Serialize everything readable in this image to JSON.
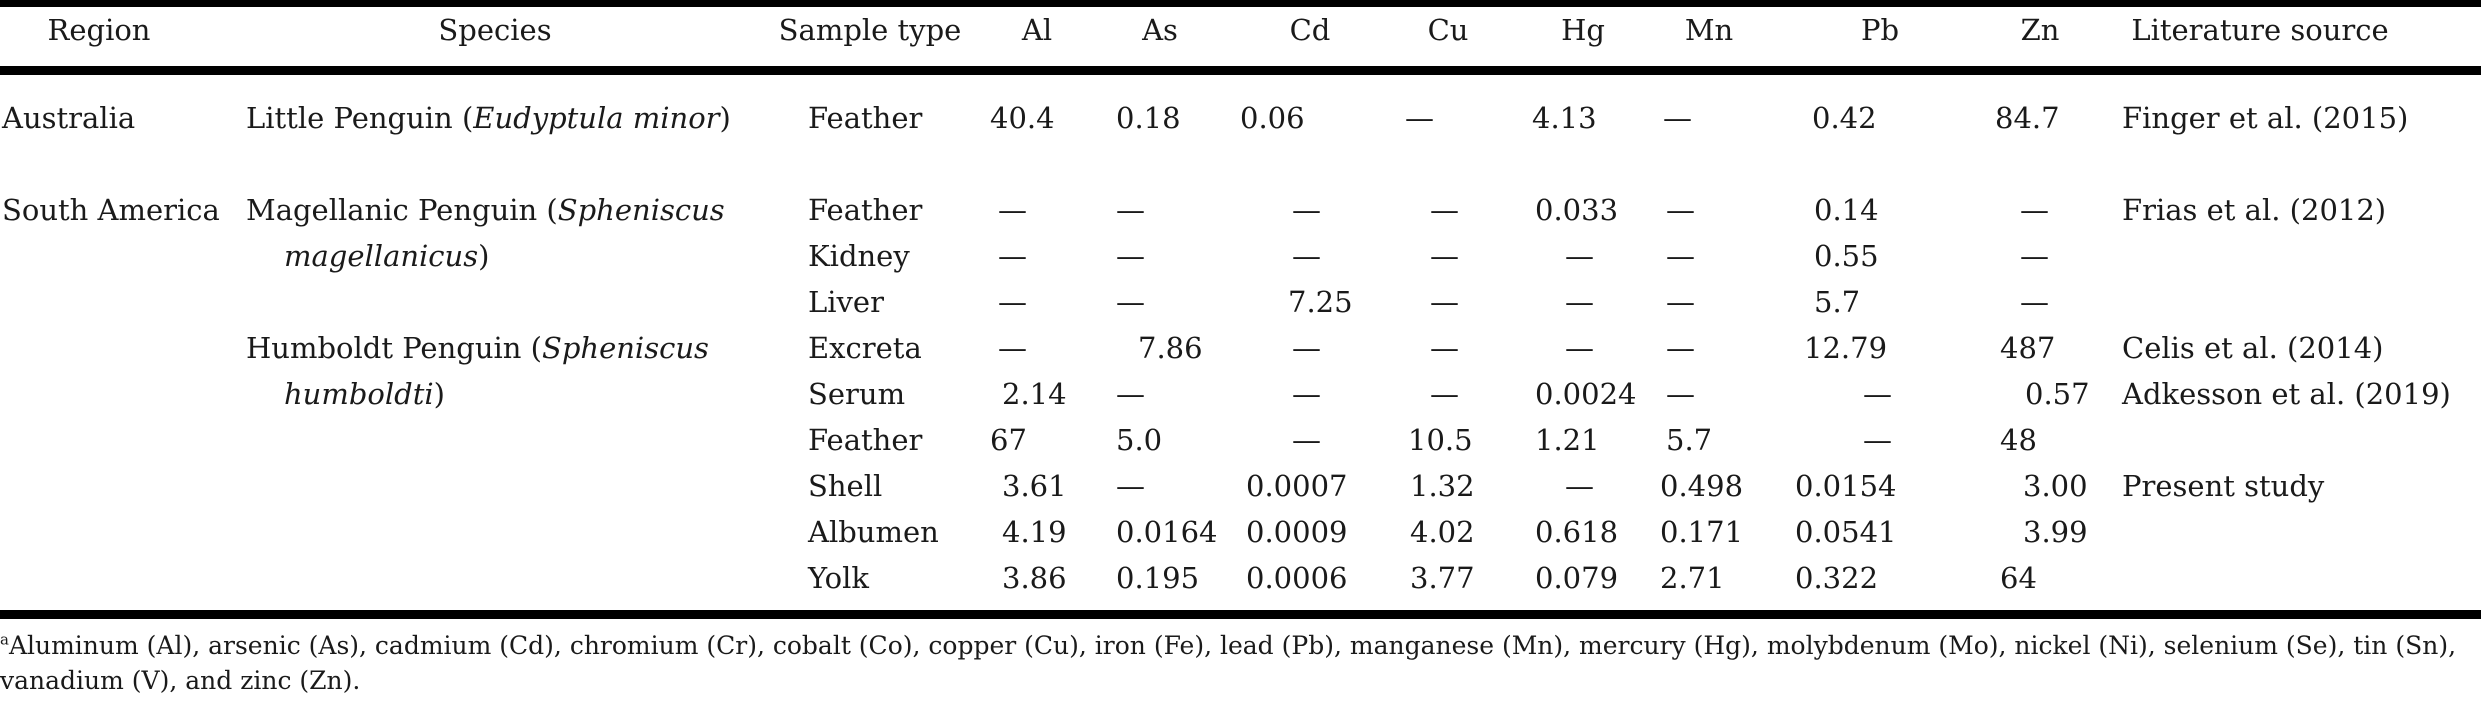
{
  "table": {
    "headers": {
      "region": "Region",
      "species": "Species",
      "sample_type": "Sample type",
      "al": "Al",
      "as": "As",
      "cd": "Cd",
      "cu": "Cu",
      "hg": "Hg",
      "mn": "Mn",
      "pb": "Pb",
      "zn": "Zn",
      "source": "Literature source"
    },
    "regions": {
      "australia": "Australia",
      "south_america": "South America"
    },
    "species": {
      "little": {
        "name": "Little Penguin (",
        "latin": "Eudyptula minor",
        "close": ")"
      },
      "magellanic": {
        "name": "Magellanic Penguin (",
        "latin1": "Spheniscus",
        "latin2": "magellanicus",
        "close": ")"
      },
      "humboldt": {
        "name": "Humboldt Penguin (",
        "latin1": "Spheniscus",
        "latin2": "humboldti",
        "close": ")"
      }
    },
    "rows": [
      {
        "sample": "Feather",
        "al": "40.4",
        "as": "0.18",
        "cd": "0.06",
        "cu": "—",
        "hg": "4.13",
        "mn": "—",
        "pb": "0.42",
        "zn": "84.7",
        "source": "Finger et al. (2015)"
      },
      {
        "sample": "Feather",
        "al": "—",
        "as": "—",
        "cd": "—",
        "cu": "—",
        "hg": "0.033",
        "mn": "—",
        "pb": "0.14",
        "zn": "—",
        "source": "Frias et al. (2012)"
      },
      {
        "sample": "Kidney",
        "al": "—",
        "as": "—",
        "cd": "—",
        "cu": "—",
        "hg": "—",
        "mn": "—",
        "pb": "0.55",
        "zn": "—",
        "source": ""
      },
      {
        "sample": "Liver",
        "al": "—",
        "as": "—",
        "cd": "7.25",
        "cu": "—",
        "hg": "—",
        "mn": "—",
        "pb": "5.7",
        "zn": "—",
        "source": ""
      },
      {
        "sample": "Excreta",
        "al": "—",
        "as": "7.86",
        "cd": "—",
        "cu": "—",
        "hg": "—",
        "mn": "—",
        "pb": "12.79",
        "zn": "487",
        "source": "Celis et al. (2014)"
      },
      {
        "sample": "Serum",
        "al": "2.14",
        "as": "—",
        "cd": "—",
        "cu": "—",
        "hg": "0.0024",
        "mn": "—",
        "pb": "—",
        "zn": "0.57",
        "source": "Adkesson et al. (2019)"
      },
      {
        "sample": "Feather",
        "al": "67",
        "as": "5.0",
        "cd": "—",
        "cu": "10.5",
        "hg": "1.21",
        "mn": "5.7",
        "pb": "—",
        "zn": "48",
        "source": ""
      },
      {
        "sample": "Shell",
        "al": "3.61",
        "as": "—",
        "cd": "0.0007",
        "cu": "1.32",
        "hg": "—",
        "mn": "0.498",
        "pb": "0.0154",
        "zn": "3.00",
        "source": "Present study"
      },
      {
        "sample": "Albumen",
        "al": "4.19",
        "as": "0.0164",
        "cd": "0.0009",
        "cu": "4.02",
        "hg": "0.618",
        "mn": "0.171",
        "pb": "0.0541",
        "zn": "3.99",
        "source": ""
      },
      {
        "sample": "Yolk",
        "al": "3.86",
        "as": "0.195",
        "cd": "0.0006",
        "cu": "3.77",
        "hg": "0.079",
        "mn": "2.71",
        "pb": "0.322",
        "zn": "64",
        "source": ""
      }
    ]
  },
  "footnote": {
    "marker": "a",
    "text": "Aluminum (Al), arsenic (As), cadmium (Cd), chromium (Cr), cobalt (Co), copper (Cu), iron (Fe), lead (Pb), manganese (Mn), mercury (Hg), molybdenum (Mo), nickel (Ni), selenium (Se), tin (Sn), vanadium (V), and zinc (Zn)."
  }
}
